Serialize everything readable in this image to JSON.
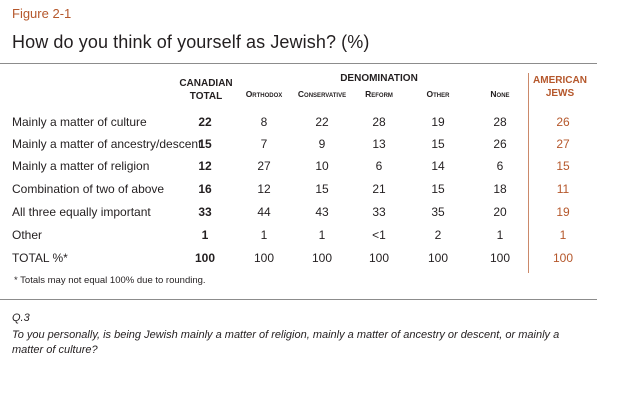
{
  "figure_label": "Figure 2-1",
  "title": "How do you think of yourself as Jewish? (%)",
  "headers": {
    "canadian_total": [
      "Canadian",
      "Total"
    ],
    "denomination": "Denomination",
    "american_jews": [
      "American",
      "Jews"
    ],
    "sub": [
      "Orthodox",
      "Conservative",
      "Reform",
      "Other",
      "None"
    ]
  },
  "rows": [
    {
      "label": "Mainly a matter of culture",
      "can": "22",
      "orth": "8",
      "cons": "22",
      "ref": "28",
      "oth": "19",
      "none": "28",
      "amer": "26"
    },
    {
      "label": "Mainly a matter of ancestry/descent",
      "can": "15",
      "orth": "7",
      "cons": "9",
      "ref": "13",
      "oth": "15",
      "none": "26",
      "amer": "27"
    },
    {
      "label": "Mainly a matter of religion",
      "can": "12",
      "orth": "27",
      "cons": "10",
      "ref": "6",
      "oth": "14",
      "none": "6",
      "amer": "15"
    },
    {
      "label": "Combination of two of above",
      "can": "16",
      "orth": "12",
      "cons": "15",
      "ref": "21",
      "oth": "15",
      "none": "18",
      "amer": "11"
    },
    {
      "label": "All three equally important",
      "can": "33",
      "orth": "44",
      "cons": "43",
      "ref": "33",
      "oth": "35",
      "none": "20",
      "amer": "19"
    },
    {
      "label": "Other",
      "can": "1",
      "orth": "1",
      "cons": "1",
      "ref": "<1",
      "oth": "2",
      "none": "1",
      "amer": "1"
    },
    {
      "label": "TOTAL %*",
      "can": "100",
      "orth": "100",
      "cons": "100",
      "ref": "100",
      "oth": "100",
      "none": "100",
      "amer": "100"
    }
  ],
  "footnote": "* Totals may not equal 100% due to rounding.",
  "question_id": "Q.3",
  "question_text": "To you personally, is being Jewish mainly a matter of religion, mainly a matter of ancestry or descent, or mainly a matter of culture?",
  "colors": {
    "accent": "#b5572b",
    "text": "#231f20",
    "rule": "#8c8c8c"
  }
}
